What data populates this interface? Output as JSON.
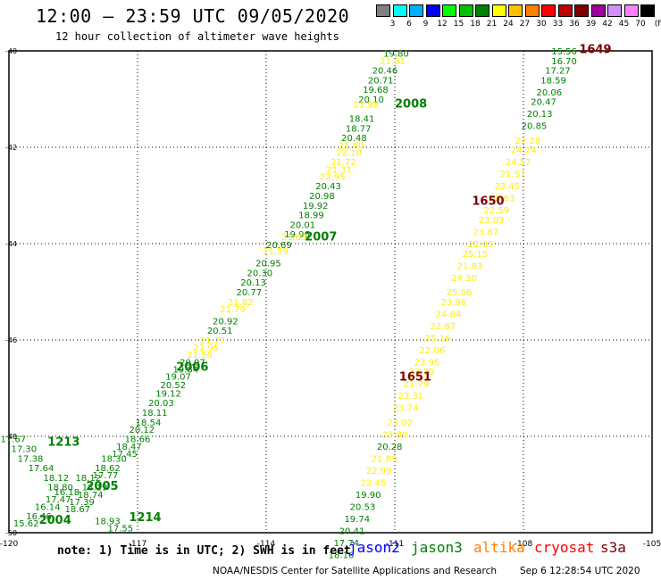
{
  "header": {
    "title": "12:00 — 23:59 UTC 09/05/2020",
    "subtitle": "12 hour collection of altimeter wave heights"
  },
  "legend": {
    "unit": "(ft)",
    "bins": [
      {
        "label": "3",
        "color": "#808080"
      },
      {
        "label": "6",
        "color": "#00ffff"
      },
      {
        "label": "9",
        "color": "#00b0ff"
      },
      {
        "label": "12",
        "color": "#0000ff"
      },
      {
        "label": "15",
        "color": "#00ff00"
      },
      {
        "label": "18",
        "color": "#00c000"
      },
      {
        "label": "21",
        "color": "#008000"
      },
      {
        "label": "24",
        "color": "#ffff00"
      },
      {
        "label": "27",
        "color": "#ffc000"
      },
      {
        "label": "30",
        "color": "#ff8000"
      },
      {
        "label": "33",
        "color": "#ff0000"
      },
      {
        "label": "36",
        "color": "#c00000"
      },
      {
        "label": "39",
        "color": "#800000"
      },
      {
        "label": "42",
        "color": "#a000a0"
      },
      {
        "label": "45",
        "color": "#d090ff"
      },
      {
        "label": "70",
        "color": "#ff80ff"
      },
      {
        "label": "",
        "color": "#000000"
      }
    ]
  },
  "map": {
    "lon_range": [
      -120,
      -105
    ],
    "lat_range": [
      -50,
      -40
    ],
    "lon_ticks": [
      "-120",
      "-117",
      "-114",
      "-111",
      "-108",
      "-105"
    ],
    "lat_ticks": [
      "-40",
      "-42",
      "-44",
      "-46",
      "-48",
      "-50"
    ],
    "colors": {
      "green": "#008000",
      "yellow": "#ffee00",
      "darkred": "#800000",
      "grid": "#000000"
    },
    "track_labels": [
      {
        "text": "2008",
        "lon": -111.0,
        "lat": -41.08,
        "color": "green"
      },
      {
        "text": "2007",
        "lon": -113.1,
        "lat": -43.84,
        "color": "green"
      },
      {
        "text": "2006",
        "lon": -116.1,
        "lat": -46.55,
        "color": "green"
      },
      {
        "text": "2005",
        "lon": -118.2,
        "lat": -49.02,
        "color": "green"
      },
      {
        "text": "2004",
        "lon": -119.3,
        "lat": -49.72,
        "color": "green"
      },
      {
        "text": "1213",
        "lon": -119.1,
        "lat": -48.1,
        "color": "green"
      },
      {
        "text": "1214",
        "lon": -117.2,
        "lat": -49.67,
        "color": "green"
      },
      {
        "text": "1649",
        "lon": -106.7,
        "lat": -39.95,
        "color": "darkred"
      },
      {
        "text": "1650",
        "lon": -109.2,
        "lat": -43.1,
        "color": "darkred"
      },
      {
        "text": "1651",
        "lon": -110.9,
        "lat": -46.75,
        "color": "darkred"
      }
    ],
    "tracks": [
      {
        "name": "jason3",
        "color": "green",
        "points": [
          {
            "lon": -110.97,
            "lat": -40.05,
            "v": "19.80"
          },
          {
            "lon": -111.05,
            "lat": -40.2,
            "v": "21.81",
            "c": "yellow"
          },
          {
            "lon": -111.23,
            "lat": -40.4,
            "v": "20.46"
          },
          {
            "lon": -111.33,
            "lat": -40.6,
            "v": "20.71"
          },
          {
            "lon": -111.45,
            "lat": -40.8,
            "v": "19.68"
          },
          {
            "lon": -111.55,
            "lat": -41.0,
            "v": "20.10"
          },
          {
            "lon": -111.67,
            "lat": -41.1,
            "v": "21.98",
            "c": "yellow"
          },
          {
            "lon": -111.77,
            "lat": -41.4,
            "v": "18.41"
          },
          {
            "lon": -111.85,
            "lat": -41.6,
            "v": "18.77"
          },
          {
            "lon": -111.95,
            "lat": -41.8,
            "v": "20.48"
          },
          {
            "lon": -112.02,
            "lat": -41.95,
            "v": "21.80",
            "c": "yellow"
          },
          {
            "lon": -112.07,
            "lat": -42.1,
            "v": "22.10",
            "c": "yellow"
          },
          {
            "lon": -112.2,
            "lat": -42.3,
            "v": "21.72",
            "c": "yellow"
          },
          {
            "lon": -112.3,
            "lat": -42.45,
            "v": "21.31",
            "c": "yellow"
          },
          {
            "lon": -112.45,
            "lat": -42.6,
            "v": "22.95",
            "c": "yellow"
          },
          {
            "lon": -112.55,
            "lat": -42.8,
            "v": "20.43"
          },
          {
            "lon": -112.7,
            "lat": -43.0,
            "v": "20.98"
          },
          {
            "lon": -112.85,
            "lat": -43.2,
            "v": "19.92"
          },
          {
            "lon": -112.95,
            "lat": -43.4,
            "v": "18.99"
          },
          {
            "lon": -113.15,
            "lat": -43.6,
            "v": "20.01"
          },
          {
            "lon": -113.28,
            "lat": -43.8,
            "v": "19.96"
          },
          {
            "lon": -113.35,
            "lat": -43.85,
            "v": "21.63",
            "c": "yellow"
          },
          {
            "lon": -113.7,
            "lat": -44.02,
            "v": "20.69"
          },
          {
            "lon": -113.78,
            "lat": -44.15,
            "v": "21.59",
            "c": "yellow"
          },
          {
            "lon": -113.95,
            "lat": -44.4,
            "v": "20.95"
          },
          {
            "lon": -114.15,
            "lat": -44.6,
            "v": "20.30"
          },
          {
            "lon": -114.3,
            "lat": -44.8,
            "v": "20.13"
          },
          {
            "lon": -114.4,
            "lat": -45.0,
            "v": "20.77"
          },
          {
            "lon": -114.6,
            "lat": -45.2,
            "v": "21.82",
            "c": "yellow"
          },
          {
            "lon": -114.78,
            "lat": -45.35,
            "v": "21.79",
            "c": "yellow"
          },
          {
            "lon": -114.95,
            "lat": -45.6,
            "v": "20.92"
          },
          {
            "lon": -115.08,
            "lat": -45.8,
            "v": "20.51"
          },
          {
            "lon": -115.25,
            "lat": -46.0,
            "v": "21.77",
            "c": "yellow"
          },
          {
            "lon": -115.4,
            "lat": -46.15,
            "v": "21.95",
            "c": "yellow"
          },
          {
            "lon": -115.55,
            "lat": -46.3,
            "v": "21.56",
            "c": "yellow"
          },
          {
            "lon": -115.72,
            "lat": -46.45,
            "v": "20.07"
          },
          {
            "lon": -115.88,
            "lat": -46.6,
            "v": "19.84"
          },
          {
            "lon": -116.05,
            "lat": -46.75,
            "v": "19.07"
          },
          {
            "lon": -116.17,
            "lat": -46.93,
            "v": "20.52"
          },
          {
            "lon": -116.28,
            "lat": -47.1,
            "v": "19.12"
          },
          {
            "lon": -116.45,
            "lat": -47.3,
            "v": "20.03"
          },
          {
            "lon": -116.6,
            "lat": -47.5,
            "v": "18.11"
          },
          {
            "lon": -116.75,
            "lat": -47.7,
            "v": "18.54"
          },
          {
            "lon": -116.9,
            "lat": -47.85,
            "v": "20.12"
          },
          {
            "lon": -117.0,
            "lat": -48.05,
            "v": "18.66"
          },
          {
            "lon": -117.2,
            "lat": -48.2,
            "v": "18.47"
          },
          {
            "lon": -117.3,
            "lat": -48.35,
            "v": "17.45"
          },
          {
            "lon": -117.55,
            "lat": -48.45,
            "v": "18.30"
          },
          {
            "lon": -117.7,
            "lat": -48.65,
            "v": "18.62"
          },
          {
            "lon": -117.75,
            "lat": -48.8,
            "v": "17.77"
          },
          {
            "lon": -118.15,
            "lat": -48.85,
            "v": "18.12"
          },
          {
            "lon": -118.0,
            "lat": -49.05,
            "v": "18.19"
          },
          {
            "lon": -118.1,
            "lat": -49.2,
            "v": "18.74"
          },
          {
            "lon": -118.3,
            "lat": -49.35,
            "v": "17.39"
          },
          {
            "lon": -118.4,
            "lat": -49.5,
            "v": "18.67"
          }
        ]
      },
      {
        "name": "jason3-west",
        "color": "green",
        "points": [
          {
            "lon": -119.9,
            "lat": -48.05,
            "v": "17.67"
          },
          {
            "lon": -119.65,
            "lat": -48.25,
            "v": "17.30"
          },
          {
            "lon": -119.5,
            "lat": -48.45,
            "v": "17.38"
          },
          {
            "lon": -119.25,
            "lat": -48.65,
            "v": "17.64"
          },
          {
            "lon": -118.9,
            "lat": -48.85,
            "v": "18.12"
          },
          {
            "lon": -118.8,
            "lat": -49.05,
            "v": "18.80"
          },
          {
            "lon": -118.65,
            "lat": -49.15,
            "v": "16.18"
          },
          {
            "lon": -118.85,
            "lat": -49.3,
            "v": "17.47"
          },
          {
            "lon": -119.1,
            "lat": -49.45,
            "v": "16.14"
          },
          {
            "lon": -119.3,
            "lat": -49.65,
            "v": "16.46"
          },
          {
            "lon": -119.6,
            "lat": -49.8,
            "v": "15.62"
          },
          {
            "lon": -117.7,
            "lat": -49.75,
            "v": "18.93"
          },
          {
            "lon": -117.4,
            "lat": -49.9,
            "v": "17.55"
          }
        ]
      },
      {
        "name": "jason3-1649",
        "color": "green",
        "points": [
          {
            "lon": -107.05,
            "lat": -40.0,
            "v": "15.56"
          },
          {
            "lon": -107.05,
            "lat": -40.2,
            "v": "16.70"
          },
          {
            "lon": -107.2,
            "lat": -40.4,
            "v": "17.27"
          },
          {
            "lon": -107.3,
            "lat": -40.6,
            "v": "18.59"
          },
          {
            "lon": -107.4,
            "lat": -40.85,
            "v": "20.06"
          },
          {
            "lon": -107.53,
            "lat": -41.05,
            "v": "20.47"
          },
          {
            "lon": -107.62,
            "lat": -41.3,
            "v": "20.13"
          },
          {
            "lon": -107.75,
            "lat": -41.55,
            "v": "20.85"
          },
          {
            "lon": -107.9,
            "lat": -41.85,
            "v": "22.28",
            "c": "yellow"
          },
          {
            "lon": -108.0,
            "lat": -42.05,
            "v": "24.24",
            "c": "yellow"
          },
          {
            "lon": -108.12,
            "lat": -42.3,
            "v": "24.57",
            "c": "yellow"
          },
          {
            "lon": -108.25,
            "lat": -42.55,
            "v": "21.57",
            "c": "yellow"
          },
          {
            "lon": -108.38,
            "lat": -42.8,
            "v": "23.45",
            "c": "yellow"
          },
          {
            "lon": -108.5,
            "lat": -43.05,
            "v": "25.63",
            "c": "yellow"
          },
          {
            "lon": -108.63,
            "lat": -43.3,
            "v": "22.59",
            "c": "yellow"
          },
          {
            "lon": -108.75,
            "lat": -43.5,
            "v": "23.03",
            "c": "yellow"
          },
          {
            "lon": -108.88,
            "lat": -43.75,
            "v": "23.87",
            "c": "yellow"
          },
          {
            "lon": -109.0,
            "lat": -44.0,
            "v": "22.03",
            "c": "yellow"
          },
          {
            "lon": -109.13,
            "lat": -44.2,
            "v": "25.15",
            "c": "yellow"
          },
          {
            "lon": -109.25,
            "lat": -44.45,
            "v": "21.83",
            "c": "yellow"
          },
          {
            "lon": -109.38,
            "lat": -44.7,
            "v": "24.30",
            "c": "yellow"
          },
          {
            "lon": -109.5,
            "lat": -45.0,
            "v": "25.06",
            "c": "yellow"
          },
          {
            "lon": -109.63,
            "lat": -45.2,
            "v": "23.96",
            "c": "yellow"
          },
          {
            "lon": -109.75,
            "lat": -45.45,
            "v": "24.84",
            "c": "yellow"
          },
          {
            "lon": -109.88,
            "lat": -45.7,
            "v": "22.87",
            "c": "yellow"
          },
          {
            "lon": -110.0,
            "lat": -45.95,
            "v": "25.16",
            "c": "yellow"
          },
          {
            "lon": -110.13,
            "lat": -46.2,
            "v": "22.06",
            "c": "yellow"
          },
          {
            "lon": -110.25,
            "lat": -46.45,
            "v": "23.95",
            "c": "yellow"
          },
          {
            "lon": -110.38,
            "lat": -46.65,
            "v": "23.30",
            "c": "yellow"
          },
          {
            "lon": -110.5,
            "lat": -46.9,
            "v": "21.79",
            "c": "yellow"
          },
          {
            "lon": -110.63,
            "lat": -47.15,
            "v": "23.31",
            "c": "yellow"
          },
          {
            "lon": -110.75,
            "lat": -47.4,
            "v": "23.74",
            "c": "yellow"
          },
          {
            "lon": -110.88,
            "lat": -47.7,
            "v": "23.02",
            "c": "yellow"
          },
          {
            "lon": -111.0,
            "lat": -47.95,
            "v": "23.80",
            "c": "yellow"
          },
          {
            "lon": -111.12,
            "lat": -48.2,
            "v": "20.28"
          },
          {
            "lon": -111.25,
            "lat": -48.45,
            "v": "21.89",
            "c": "yellow"
          },
          {
            "lon": -111.37,
            "lat": -48.7,
            "v": "22.99",
            "c": "yellow"
          },
          {
            "lon": -111.5,
            "lat": -48.95,
            "v": "22.45",
            "c": "yellow"
          },
          {
            "lon": -111.62,
            "lat": -49.2,
            "v": "19.90"
          },
          {
            "lon": -111.75,
            "lat": -49.45,
            "v": "20.53"
          },
          {
            "lon": -111.88,
            "lat": -49.7,
            "v": "19.74"
          },
          {
            "lon": -112.0,
            "lat": -49.95,
            "v": "20.41"
          },
          {
            "lon": -112.13,
            "lat": -50.2,
            "v": "17.74"
          },
          {
            "lon": -112.25,
            "lat": -50.45,
            "v": "18.16"
          }
        ]
      }
    ]
  },
  "footer": {
    "note": "note: 1) Time is in UTC; 2) SWH is in feet",
    "satellites": [
      {
        "name": "jason2",
        "color": "#0000ff"
      },
      {
        "name": "jason3",
        "color": "#008000"
      },
      {
        "name": "altika",
        "color": "#ff8000"
      },
      {
        "name": "cryosat",
        "color": "#ff0000"
      },
      {
        "name": "s3a",
        "color": "#800000"
      }
    ],
    "credit": "NOAA/NESDIS Center for Satellite Applications and Research",
    "timestamp": "Sep  6 12:28:54 UTC 2020"
  }
}
